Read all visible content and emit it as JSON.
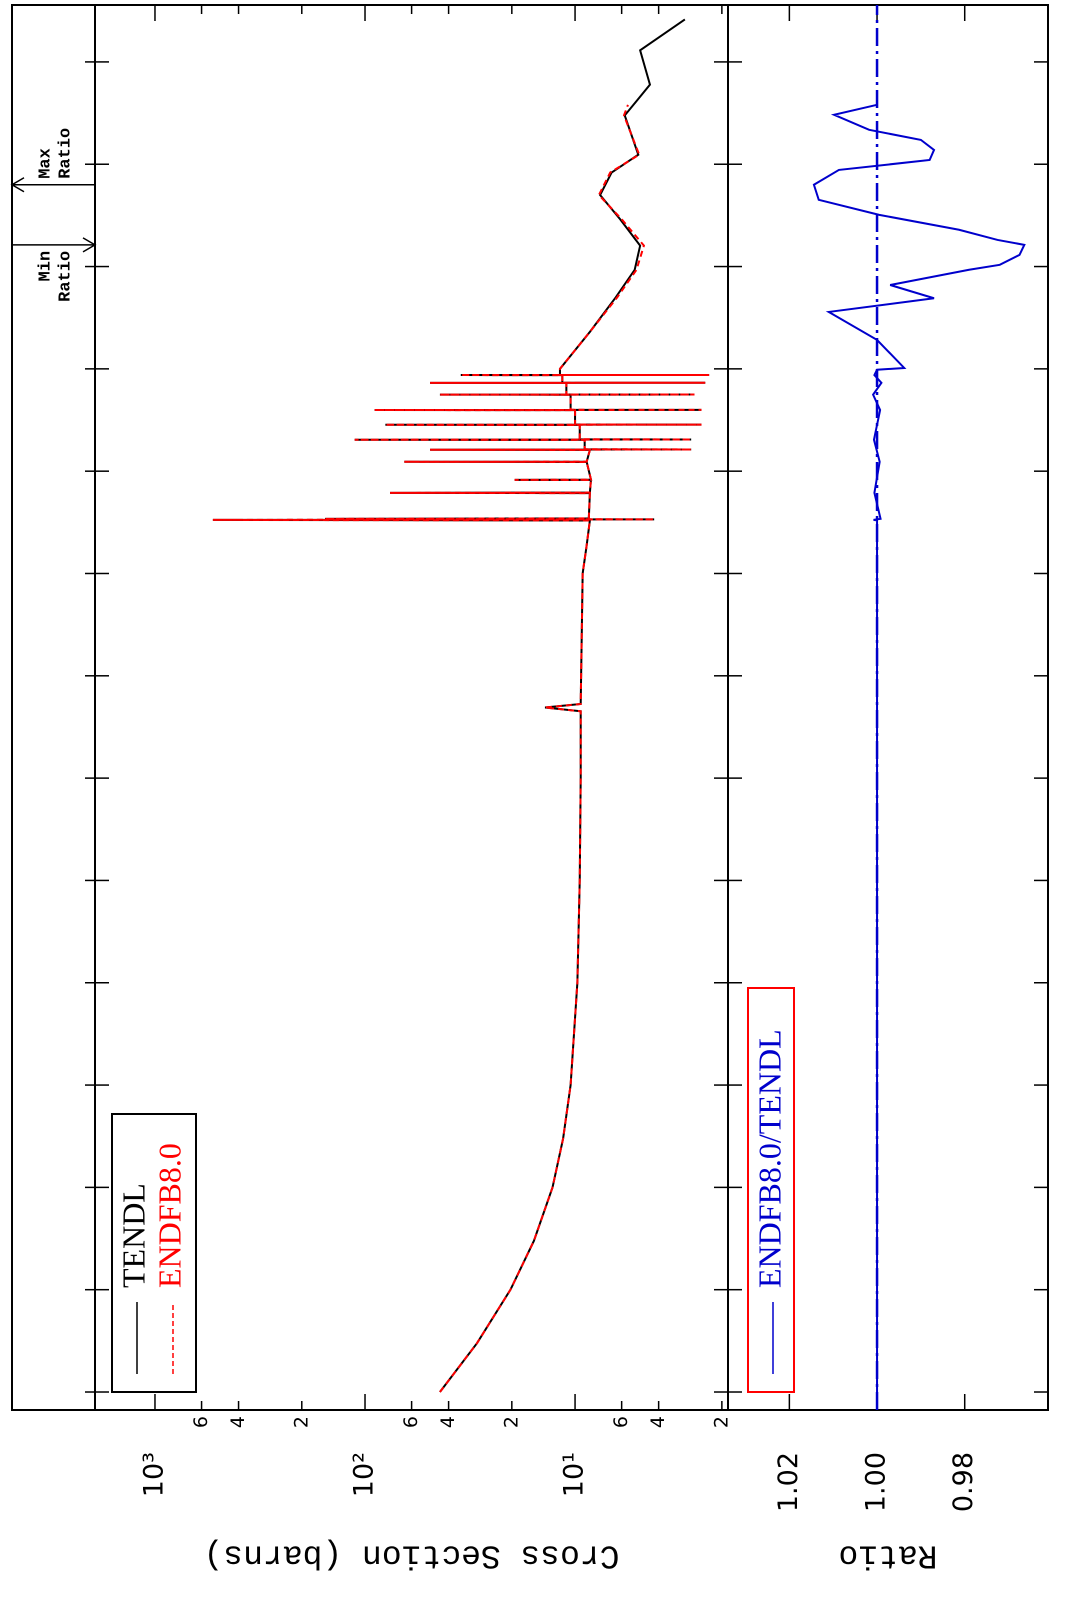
{
  "chart_data": [
    {
      "type": "line",
      "y_label": "Cross Section (barns)",
      "xscale": "log",
      "yscale": "log",
      "xlim": [
        6.67e-06,
        360000000.0
      ],
      "xticks": [
        1e-05,
        0.0001,
        0.001,
        0.01,
        0.1,
        1,
        10,
        100,
        1000,
        10000,
        100000,
        1000000,
        10000000,
        100000000
      ],
      "ylim": [
        1.87,
        1930
      ],
      "yticks": [
        2,
        4,
        6,
        {
          "value": 10,
          "label": "10¹"
        },
        {
          "value": 20,
          "label": "2"
        },
        {
          "value": 40,
          "label": "4"
        },
        {
          "value": 60,
          "label": "6"
        },
        {
          "value": 100,
          "label": "10²"
        },
        {
          "value": 200,
          "label": "2"
        },
        {
          "value": 400,
          "label": "4"
        },
        {
          "value": 600,
          "label": "6"
        },
        {
          "value": 1000,
          "label": "10³"
        }
      ],
      "legend": "upper left",
      "series": [
        {
          "name": "TENDL",
          "color": "#000000",
          "style": "solid",
          "x": [
            1e-05,
            3e-05,
            0.0001,
            0.0003,
            0.001,
            0.003,
            0.01,
            0.1,
            1,
            10,
            45,
            49,
            53,
            1000,
            1900,
            3300,
            3340,
            3380,
            3420,
            3460,
            6100,
            6140,
            6180,
            8200,
            8220,
            8260,
            12300,
            12350,
            12400,
            16100,
            16200,
            16300,
            16400,
            20200,
            20300,
            20400,
            20500,
            28300,
            28400,
            28500,
            28600,
            39500,
            39600,
            39700,
            39800,
            55900,
            56000,
            56100,
            56200,
            72900,
            73000,
            73100,
            73200,
            86900,
            87000,
            87100,
            87200,
            100000,
            230000,
            500000,
            930000,
            1600000,
            2900000,
            5000000,
            8300000,
            12400000,
            30000000,
            60000000,
            130000000,
            260000000
          ],
          "values": [
            44,
            29.3,
            20.3,
            15.7,
            12.8,
            11.4,
            10.5,
            9.75,
            9.5,
            9.4,
            9.4,
            13.9,
            9.4,
            9.2,
            8.8,
            8.5,
            530,
            4.2,
            155,
            8.6,
            8.5,
            76,
            8.5,
            8.4,
            19.4,
            8.4,
            8.8,
            65,
            8.8,
            8.5,
            49,
            2.8,
            9,
            9,
            112,
            2.8,
            9.5,
            9.5,
            80,
            2.5,
            10,
            10,
            90,
            2.5,
            10.5,
            10.5,
            44,
            2.7,
            11,
            11,
            49,
            2.4,
            11.5,
            11.5,
            35,
            2.3,
            11.8,
            11.8,
            8.5,
            6.4,
            5.2,
            4.9,
            6.1,
            7.6,
            6.7,
            5.0,
            5.8,
            4.4,
            4.9,
            3.0
          ]
        },
        {
          "name": "ENDFB8.0",
          "color": "#ff0000",
          "style": "dashed",
          "x": [
            1e-05,
            3e-05,
            0.0001,
            0.0003,
            0.001,
            0.003,
            0.01,
            0.1,
            1,
            10,
            45,
            49,
            53,
            1000,
            1900,
            3300,
            3340,
            3380,
            3420,
            3460,
            6100,
            6140,
            6180,
            8200,
            8220,
            8260,
            12300,
            12350,
            12400,
            16100,
            16200,
            16300,
            16400,
            20200,
            20300,
            20400,
            20500,
            28300,
            28400,
            28500,
            28600,
            39500,
            39600,
            39700,
            39800,
            55900,
            56000,
            56100,
            56200,
            72900,
            73000,
            73100,
            73200,
            86900,
            87000,
            87100,
            87200,
            100000,
            230000,
            500000,
            930000,
            1600000,
            2900000,
            5000000,
            8300000,
            12400000,
            30000000,
            38000000
          ],
          "values": [
            44,
            29.3,
            20.3,
            15.7,
            12.8,
            11.4,
            10.5,
            9.75,
            9.5,
            9.4,
            9.4,
            13.9,
            9.4,
            9.2,
            8.8,
            8.5,
            530,
            4.2,
            155,
            8.6,
            8.5,
            76,
            8.5,
            8.4,
            19.4,
            8.4,
            8.8,
            65,
            8.8,
            8.5,
            49,
            2.8,
            9,
            9,
            112,
            2.8,
            9.5,
            9.5,
            80,
            2.5,
            10,
            10,
            90,
            2.5,
            10.5,
            10.5,
            44,
            2.7,
            11,
            11,
            49,
            2.4,
            11.5,
            11.5,
            35,
            2.3,
            11.8,
            11.8,
            8.5,
            6.3,
            5.1,
            4.7,
            6.0,
            7.7,
            6.8,
            4.95,
            5.85,
            5.6
          ]
        }
      ]
    },
    {
      "type": "line",
      "y_label": "Ratio",
      "xscale": "log",
      "yscale": "linear",
      "xlim": [
        6.67e-06,
        360000000.0
      ],
      "xticks": [
        1e-05,
        0.0001,
        0.001,
        0.01,
        0.1,
        1,
        10,
        100,
        1000,
        10000,
        100000,
        1000000,
        10000000,
        100000000
      ],
      "ylim": [
        0.961,
        1.034
      ],
      "yticks": [
        0.98,
        {
          "value": 1,
          "label": "1.00"
        },
        1.02
      ],
      "reference_line": 1,
      "legend": "upper left",
      "legend_border": "#ff0000",
      "annotations": {
        "min": [
          "Min",
          "Ratio"
        ],
        "max": [
          "Max",
          "Ratio"
        ]
      },
      "series": [
        {
          "name": "ENDFB8.0/TENDL",
          "color": "#0000cc",
          "style": "solid",
          "x": [
            1e-05,
            3300,
            3340,
            3420,
            6140,
            12350,
            20300,
            39600,
            56000,
            73000,
            87000,
            98000,
            102000,
            192000,
            360000,
            490000,
            660000,
            930000,
            1040000,
            1300000,
            1630000,
            1820000,
            2290000,
            3200000,
            4490000,
            6300000,
            8800000,
            11000000,
            13800000,
            17300000,
            21700000,
            30400000,
            38100000
          ],
          "values": [
            1,
            1,
            1.0008,
            0.9992,
            1.0006,
            0.9994,
            1.0007,
            0.9993,
            1.0009,
            0.999,
            1.0006,
            1,
            0.9938,
            1.0,
            1.011,
            0.987,
            0.997,
            0.979,
            0.972,
            0.9675,
            0.9664,
            0.9725,
            0.9813,
            0.9995,
            1.0133,
            1.0144,
            1.0087,
            0.988,
            0.987,
            0.99,
            1.0018,
            1.0098,
            1.0
          ]
        }
      ]
    }
  ]
}
